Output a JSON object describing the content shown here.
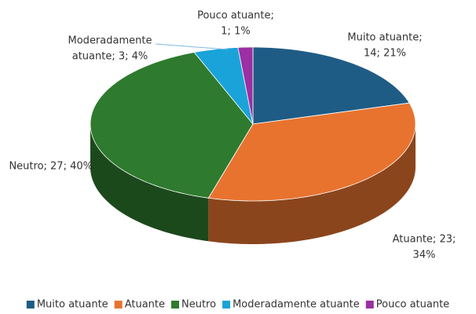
{
  "chart_data": {
    "type": "pie3d",
    "categories": [
      "Muito atuante",
      "Atuante",
      "Neutro",
      "Moderadamente atuante",
      "Pouco atuante"
    ],
    "values": [
      14,
      23,
      27,
      3,
      1
    ],
    "value_labels": [
      [
        "Muito atuante;",
        "14; 21%"
      ],
      [
        "Atuante; 23;",
        "34%"
      ],
      [
        "Neutro; 27; 40%"
      ],
      [
        "Moderadamente",
        "atuante; 3; 4%"
      ],
      [
        "Pouco atuante;",
        "1; 1%"
      ]
    ],
    "colors": [
      "#1f5c85",
      "#e8732f",
      "#2e7a2e",
      "#1aa3d9",
      "#9b2fa3"
    ],
    "legend": "bottom"
  }
}
